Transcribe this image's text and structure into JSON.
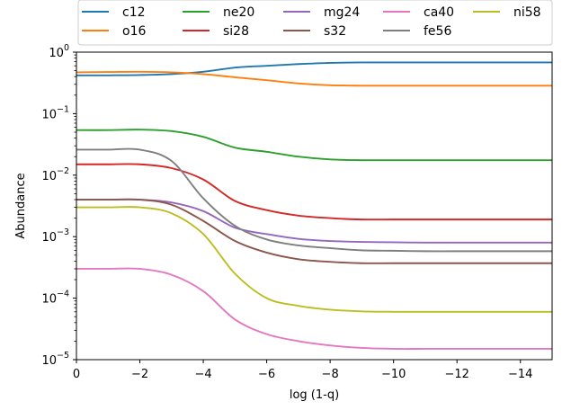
{
  "chart_data": {
    "type": "line",
    "xlabel": "log (1-q)",
    "ylabel": "Abundance",
    "xlim": [
      0,
      -15
    ],
    "ylim": [
      1e-05,
      1
    ],
    "yscale": "log",
    "grid": false,
    "legend_position": "top",
    "xticks": [
      {
        "value": 0,
        "label": "0"
      },
      {
        "value": -2,
        "label": "−2"
      },
      {
        "value": -4,
        "label": "−4"
      },
      {
        "value": -6,
        "label": "−6"
      },
      {
        "value": -8,
        "label": "−8"
      },
      {
        "value": -10,
        "label": "−10"
      },
      {
        "value": -12,
        "label": "−12"
      },
      {
        "value": -14,
        "label": "−14"
      }
    ],
    "yticks": [
      {
        "value": 1e-05,
        "base": "10",
        "exp": "−5"
      },
      {
        "value": 0.0001,
        "base": "10",
        "exp": "−4"
      },
      {
        "value": 0.001,
        "base": "10",
        "exp": "−3"
      },
      {
        "value": 0.01,
        "base": "10",
        "exp": "−2"
      },
      {
        "value": 0.1,
        "base": "10",
        "exp": "−1"
      },
      {
        "value": 1,
        "base": "10",
        "exp": "0"
      }
    ],
    "x": [
      0,
      -1,
      -2,
      -3,
      -4,
      -5,
      -6,
      -7,
      -8,
      -9,
      -10,
      -11,
      -12,
      -13,
      -14,
      -15
    ],
    "series": [
      {
        "name": "c12",
        "color": "#1f77b4",
        "values": [
          0.42,
          0.42,
          0.425,
          0.44,
          0.48,
          0.56,
          0.6,
          0.64,
          0.67,
          0.68,
          0.68,
          0.68,
          0.68,
          0.68,
          0.68,
          0.68
        ]
      },
      {
        "name": "o16",
        "color": "#ff7f0e",
        "values": [
          0.47,
          0.475,
          0.48,
          0.47,
          0.44,
          0.39,
          0.35,
          0.31,
          0.29,
          0.285,
          0.285,
          0.285,
          0.285,
          0.285,
          0.285,
          0.285
        ]
      },
      {
        "name": "ne20",
        "color": "#2ca02c",
        "values": [
          0.054,
          0.054,
          0.055,
          0.052,
          0.042,
          0.028,
          0.024,
          0.02,
          0.018,
          0.0175,
          0.0175,
          0.0175,
          0.0175,
          0.0175,
          0.0175,
          0.0175
        ]
      },
      {
        "name": "si28",
        "color": "#d62728",
        "values": [
          0.015,
          0.015,
          0.015,
          0.013,
          0.0085,
          0.0038,
          0.0027,
          0.0022,
          0.002,
          0.0019,
          0.0019,
          0.0019,
          0.0019,
          0.0019,
          0.0019,
          0.0019
        ]
      },
      {
        "name": "mg24",
        "color": "#9467bd",
        "values": [
          0.004,
          0.004,
          0.004,
          0.0036,
          0.0026,
          0.0014,
          0.0011,
          0.00092,
          0.00085,
          0.00082,
          0.00081,
          0.0008,
          0.0008,
          0.0008,
          0.0008,
          0.0008
        ]
      },
      {
        "name": "s32",
        "color": "#8c564b",
        "values": [
          0.004,
          0.004,
          0.004,
          0.0033,
          0.0018,
          0.00085,
          0.00055,
          0.00043,
          0.00039,
          0.00037,
          0.00037,
          0.00037,
          0.00037,
          0.00037,
          0.00037,
          0.00037
        ]
      },
      {
        "name": "ca40",
        "color": "#e377c2",
        "values": [
          0.0003,
          0.0003,
          0.0003,
          0.00024,
          0.00013,
          4.5e-05,
          2.6e-05,
          2e-05,
          1.7e-05,
          1.55e-05,
          1.5e-05,
          1.5e-05,
          1.5e-05,
          1.5e-05,
          1.5e-05,
          1.5e-05
        ]
      },
      {
        "name": "fe56",
        "color": "#7f7f7f",
        "values": [
          0.026,
          0.026,
          0.026,
          0.017,
          0.0042,
          0.0015,
          0.0009,
          0.00072,
          0.00065,
          0.0006,
          0.00059,
          0.00058,
          0.00058,
          0.00058,
          0.00058,
          0.00058
        ]
      },
      {
        "name": "ni58",
        "color": "#bcbd22",
        "values": [
          0.003,
          0.003,
          0.003,
          0.0024,
          0.0011,
          0.00025,
          0.0001,
          7.5e-05,
          6.5e-05,
          6.1e-05,
          6e-05,
          6e-05,
          6e-05,
          6e-05,
          6e-05,
          6e-05
        ]
      }
    ],
    "legend_order": [
      "c12",
      "o16",
      "ne20",
      "si28",
      "mg24",
      "s32",
      "ca40",
      "fe56",
      "ni58"
    ]
  }
}
